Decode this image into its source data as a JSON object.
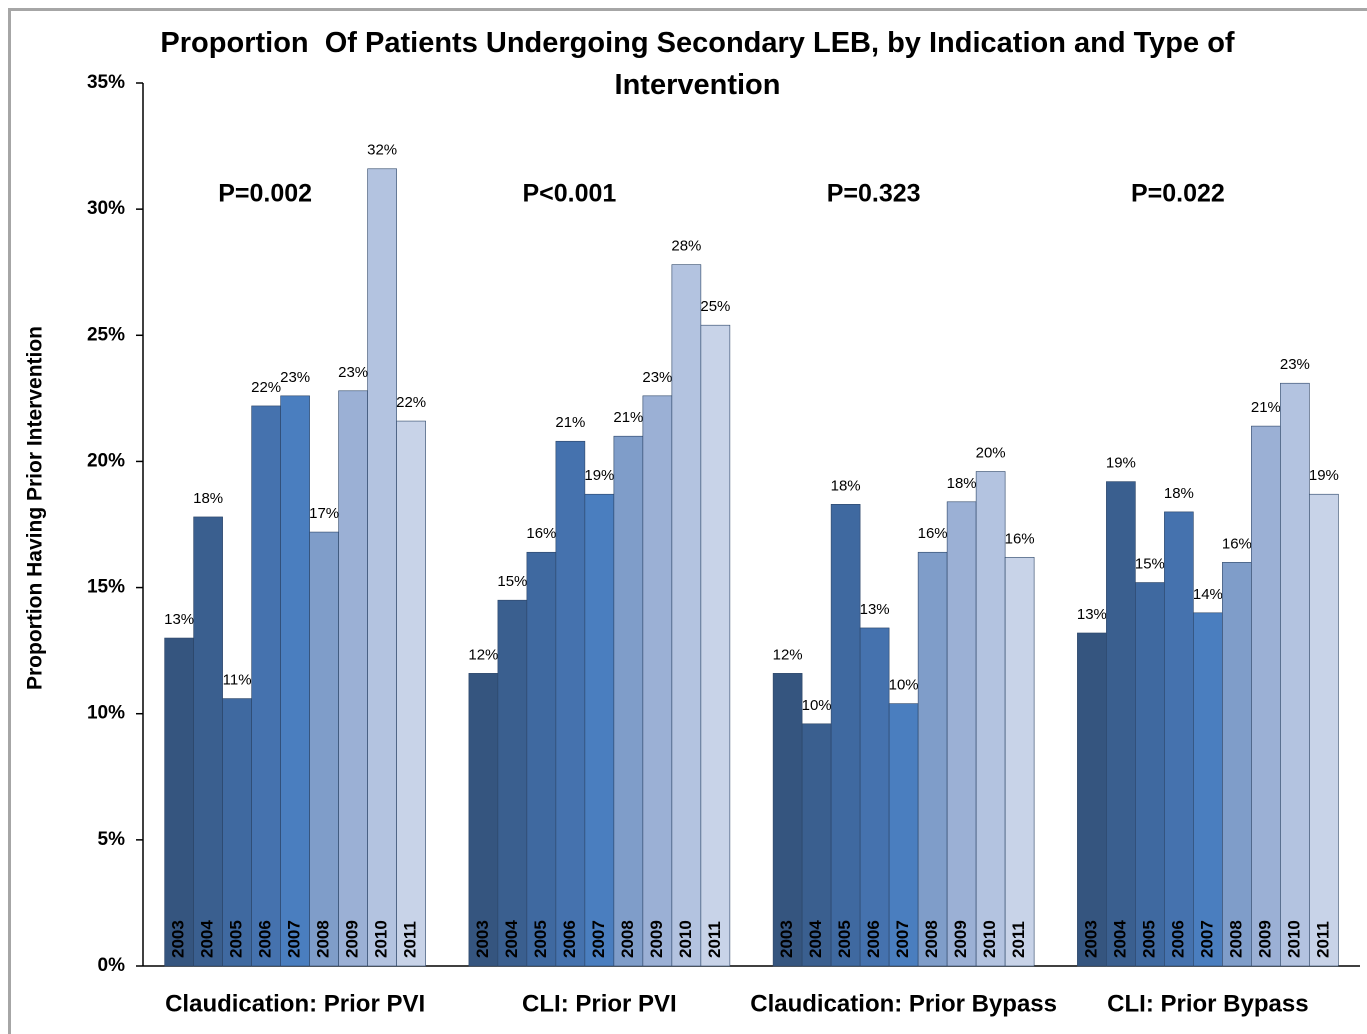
{
  "chart_data": {
    "type": "bar",
    "title": "Proportion  Of Patients Undergoing Secondary LEB, by Indication and Type of Intervention",
    "y_label": "Proportion Having Prior Intervention",
    "categories": [
      "Claudication: Prior PVI",
      "CLI: Prior PVI",
      "Claudication: Prior Bypass",
      "CLI: Prior Bypass"
    ],
    "annotations": [
      "P=0.002",
      "P<0.001",
      "P=0.323",
      "P=0.022"
    ],
    "ylim": [
      0,
      35
    ],
    "yticks": [
      {
        "value": 0,
        "label": "0%"
      },
      {
        "value": 5,
        "label": "5%"
      },
      {
        "value": 10,
        "label": "10%"
      },
      {
        "value": 15,
        "label": "15%"
      },
      {
        "value": 20,
        "label": "20%"
      },
      {
        "value": 25,
        "label": "25%"
      },
      {
        "value": 30,
        "label": "30%"
      },
      {
        "value": 35,
        "label": "35%"
      }
    ],
    "series": [
      {
        "name": "2003",
        "color": "#35557f",
        "values": [
          13.0,
          11.6,
          11.6,
          13.2
        ],
        "value_labels": [
          "13%",
          "12%",
          "12%",
          "13%"
        ]
      },
      {
        "name": "2004",
        "color": "#3a5f8f",
        "values": [
          17.8,
          14.5,
          9.6,
          19.2
        ],
        "value_labels": [
          "18%",
          "15%",
          "10%",
          "19%"
        ]
      },
      {
        "name": "2005",
        "color": "#3f69a0",
        "values": [
          10.6,
          16.4,
          18.3,
          15.2
        ],
        "value_labels": [
          "11%",
          "16%",
          "18%",
          "15%"
        ]
      },
      {
        "name": "2006",
        "color": "#4572ae",
        "values": [
          22.2,
          20.8,
          13.4,
          18.0
        ],
        "value_labels": [
          "22%",
          "21%",
          "13%",
          "18%"
        ]
      },
      {
        "name": "2007",
        "color": "#4a7ebf",
        "values": [
          22.6,
          18.7,
          10.4,
          14.0
        ],
        "value_labels": [
          "23%",
          "19%",
          "10%",
          "14%"
        ]
      },
      {
        "name": "2008",
        "color": "#7f9dc9",
        "values": [
          17.2,
          21.0,
          16.4,
          16.0
        ],
        "value_labels": [
          "17%",
          "21%",
          "16%",
          "16%"
        ]
      },
      {
        "name": "2009",
        "color": "#9bb0d5",
        "values": [
          22.8,
          22.6,
          18.4,
          21.4
        ],
        "value_labels": [
          "23%",
          "23%",
          "18%",
          "21%"
        ]
      },
      {
        "name": "2010",
        "color": "#b3c3e0",
        "values": [
          31.6,
          27.8,
          19.6,
          23.1
        ],
        "value_labels": [
          "32%",
          "28%",
          "20%",
          "23%"
        ]
      },
      {
        "name": "2011",
        "color": "#c8d3e8",
        "values": [
          21.6,
          25.4,
          16.2,
          18.7
        ],
        "value_labels": [
          "22%",
          "25%",
          "16%",
          "19%"
        ]
      }
    ]
  }
}
